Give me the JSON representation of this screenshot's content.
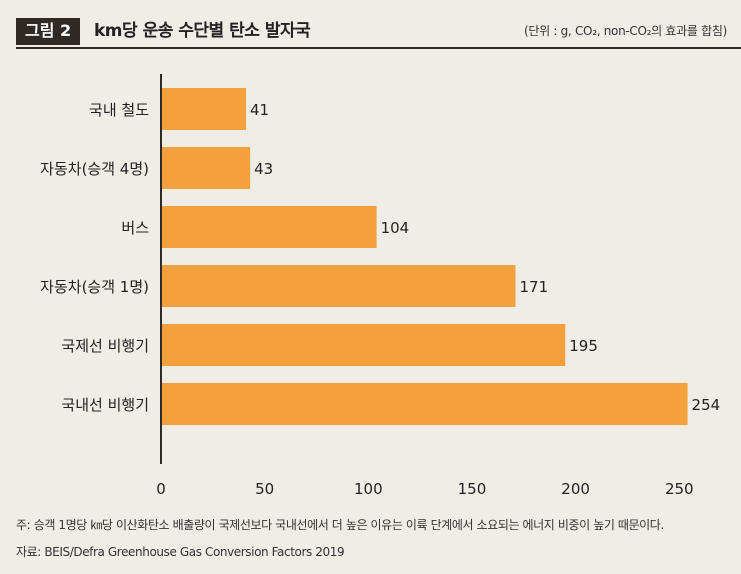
{
  "header": {
    "badge": "그림 2",
    "title": "km당 운송 수단별 탄소 발자국",
    "unit_note": "(단위 : g, CO₂, non-CO₂의 효과를 합침)"
  },
  "chart_data": {
    "type": "bar",
    "orientation": "horizontal",
    "categories": [
      "국내 철도",
      "자동차(승객 4명)",
      "버스",
      "자동차(승객 1명)",
      "국제선 비행기",
      "국내선 비행기"
    ],
    "values": [
      41,
      43,
      104,
      171,
      195,
      254
    ],
    "xlim": [
      0,
      260
    ],
    "xticks": [
      0,
      50,
      100,
      150,
      200,
      250
    ],
    "grid": false,
    "bar_color": "#f4a03c",
    "axis_color": "#2f2a26"
  },
  "footer": {
    "note": "주: 승객 1명당 ㎞당 이산화탄소 배출량이 국제선보다 국내선에서 더 높은 이유는 이륙 단계에서 소요되는 에너지 비중이 높기 때문이다.",
    "source": "자료: BEIS/Defra Greenhouse Gas Conversion Factors 2019"
  }
}
